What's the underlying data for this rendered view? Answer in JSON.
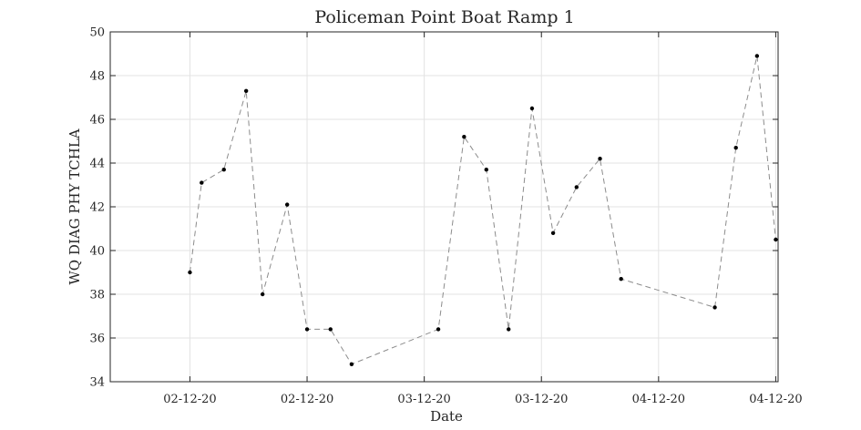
{
  "chart_data": {
    "type": "line",
    "title": "Policeman Point Boat Ramp 1",
    "xlabel": "Date",
    "ylabel": "WQ DIAG PHY TCHLA",
    "x_ticks": [
      "02-12-20",
      "02-12-20",
      "03-12-20",
      "03-12-20",
      "04-12-20",
      "04-12-20"
    ],
    "x_tick_positions": [
      0,
      5,
      10,
      15,
      20,
      25
    ],
    "xlim": [
      -3.4,
      25.1
    ],
    "ylim": [
      34,
      50
    ],
    "y_ticks": [
      34,
      36,
      38,
      40,
      42,
      44,
      46,
      48,
      50
    ],
    "grid": true,
    "series": [
      {
        "style": "dashed line with dot markers",
        "color": "#8c8c8c",
        "marker_color": "#000000",
        "x": [
          0,
          0.5,
          1.45,
          2.4,
          3.1,
          4.15,
          5.0,
          6.0,
          6.9,
          10.6,
          11.7,
          12.65,
          13.6,
          14.6,
          15.5,
          16.5,
          17.5,
          18.4,
          22.4,
          23.3,
          24.2,
          25.0
        ],
        "y": [
          39.0,
          43.1,
          43.7,
          47.3,
          38.0,
          42.1,
          36.4,
          36.4,
          34.8,
          36.4,
          45.2,
          43.7,
          36.4,
          46.5,
          40.8,
          42.9,
          44.2,
          38.7,
          37.4,
          44.7,
          48.9,
          40.5
        ]
      }
    ]
  }
}
